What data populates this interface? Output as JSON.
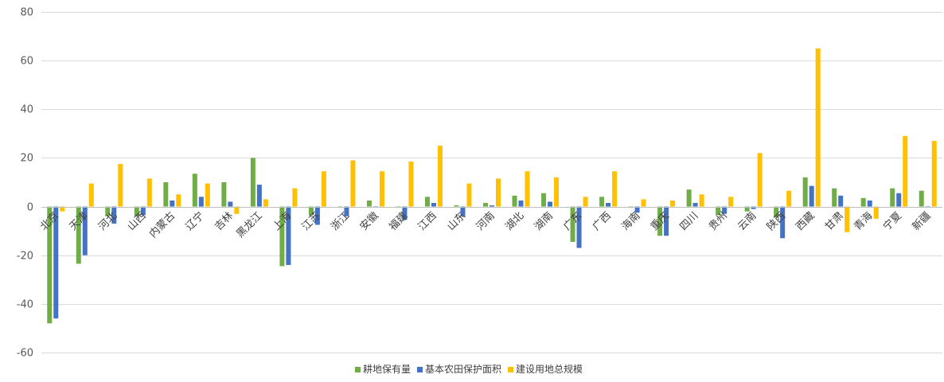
{
  "chart_data": {
    "type": "bar",
    "title": "",
    "xlabel": "",
    "ylabel": "",
    "ylim": [
      -60,
      80
    ],
    "yticks": [
      -60,
      -40,
      -20,
      0,
      20,
      40,
      60,
      80
    ],
    "grid": true,
    "legend_position": "bottom",
    "categories": [
      "北京",
      "天津",
      "河北",
      "山西",
      "内蒙古",
      "辽宁",
      "吉林",
      "黑龙江",
      "上海",
      "江苏",
      "浙江",
      "安徽",
      "福建",
      "江西",
      "山东",
      "河南",
      "湖北",
      "湖南",
      "广东",
      "广西",
      "海南",
      "重庆",
      "四川",
      "贵州",
      "云南",
      "陕西",
      "西藏",
      "甘肃",
      "青海",
      "宁夏",
      "新疆"
    ],
    "series": [
      {
        "name": "耕地保有量",
        "color": "#70AD47",
        "values": [
          -48,
          -23.5,
          -4,
          -4,
          10,
          13.5,
          10,
          20,
          -24.5,
          -3.5,
          -0.5,
          2.5,
          -0.5,
          4,
          0.5,
          1.5,
          4.5,
          5.5,
          -14.5,
          4,
          -0.5,
          -12,
          7,
          -3.5,
          -2,
          -4.5,
          12,
          7.5,
          3.5,
          7.5,
          6.5
        ]
      },
      {
        "name": "基本农田保护面积",
        "color": "#4472C4",
        "values": [
          -46,
          -20,
          -7,
          -3.5,
          2.5,
          4,
          2,
          9,
          -24,
          -7.5,
          -4,
          0,
          -5.5,
          1.5,
          -4,
          0.5,
          2.5,
          2,
          -17,
          1.5,
          -2.5,
          -12,
          1.5,
          -3,
          -1,
          -13,
          8.5,
          4.5,
          2.5,
          5.5,
          0
        ]
      },
      {
        "name": "建设用地总规模",
        "color": "#FFC000",
        "values": [
          -2,
          9.5,
          17.5,
          11.5,
          5,
          9.5,
          -3,
          3,
          7.5,
          14.5,
          19,
          14.5,
          18.5,
          25,
          9.5,
          11.5,
          14.5,
          12,
          4,
          14.5,
          3,
          2.5,
          5,
          4,
          22,
          6.5,
          65,
          -10.5,
          -5,
          29,
          27
        ]
      }
    ]
  }
}
